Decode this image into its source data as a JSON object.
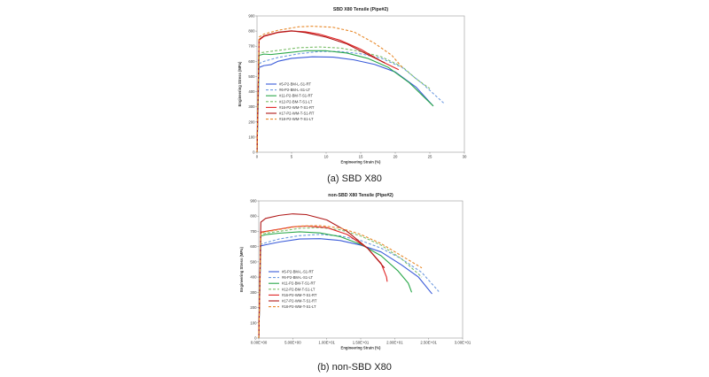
{
  "chart_data": [
    {
      "type": "line",
      "title": "SBD X80 Tensile (Pipe#2)",
      "xlabel": "Engineering Strain (%)",
      "ylabel": "Engineering Stress (MPa)",
      "xlim": [
        0,
        30
      ],
      "ylim": [
        0,
        900
      ],
      "x_ticks": [
        "0",
        "5",
        "10",
        "15",
        "20",
        "25",
        "30"
      ],
      "y_ticks": [
        "0",
        "100",
        "200",
        "300",
        "400",
        "500",
        "600",
        "700",
        "800",
        "900"
      ],
      "grid": false,
      "legend_position": "inside-lower-left",
      "caption": "(a) SBD X80",
      "series": [
        {
          "name": "#5-P2-BM-L-S1-RT",
          "color": "#3a5bd9",
          "dash": "solid",
          "points": [
            [
              0,
              0
            ],
            [
              0.3,
              560
            ],
            [
              1,
              572
            ],
            [
              2,
              578
            ],
            [
              3,
              600
            ],
            [
              5,
              620
            ],
            [
              8,
              630
            ],
            [
              11,
              628
            ],
            [
              14,
              610
            ],
            [
              17,
              580
            ],
            [
              20,
              530
            ],
            [
              23,
              430
            ],
            [
              25.5,
              305
            ]
          ]
        },
        {
          "name": "#6-P2-BM-L-S1-LT",
          "color": "#6d9ae0",
          "dash": "dashed",
          "points": [
            [
              0,
              0
            ],
            [
              0.3,
              585
            ],
            [
              1,
              600
            ],
            [
              3,
              625
            ],
            [
              6,
              650
            ],
            [
              9,
              665
            ],
            [
              12,
              665
            ],
            [
              15,
              650
            ],
            [
              18,
              620
            ],
            [
              21,
              560
            ],
            [
              24,
              450
            ],
            [
              27,
              325
            ]
          ]
        },
        {
          "name": "#11-P2-BM-T-S1-RT",
          "color": "#2aa84a",
          "dash": "solid",
          "points": [
            [
              0,
              0
            ],
            [
              0.3,
              640
            ],
            [
              1,
              648
            ],
            [
              2,
              645
            ],
            [
              4,
              655
            ],
            [
              7,
              670
            ],
            [
              10,
              670
            ],
            [
              13,
              655
            ],
            [
              16,
              620
            ],
            [
              19,
              560
            ],
            [
              22,
              460
            ],
            [
              25.5,
              305
            ]
          ]
        },
        {
          "name": "#12-P2-BM-T-S1-LT",
          "color": "#7cbf6a",
          "dash": "dashed",
          "points": [
            [
              0,
              0
            ],
            [
              0.3,
              655
            ],
            [
              1,
              660
            ],
            [
              3,
              672
            ],
            [
              6,
              690
            ],
            [
              9,
              695
            ],
            [
              12,
              688
            ],
            [
              15,
              665
            ],
            [
              18,
              630
            ],
            [
              21,
              565
            ],
            [
              23,
              485
            ],
            [
              25,
              420
            ]
          ]
        },
        {
          "name": "#16-P2-WM-T-S1-RT",
          "color": "#e02424",
          "dash": "solid",
          "points": [
            [
              0,
              0
            ],
            [
              0.3,
              740
            ],
            [
              1,
              765
            ],
            [
              3,
              790
            ],
            [
              5,
              800
            ],
            [
              7,
              795
            ],
            [
              9,
              780
            ],
            [
              12,
              740
            ],
            [
              15,
              680
            ],
            [
              18,
              600
            ],
            [
              20.5,
              545
            ]
          ]
        },
        {
          "name": "#17-P2-WM-T-S1-RT",
          "color": "#b01818",
          "dash": "solid",
          "points": [
            [
              0,
              0
            ],
            [
              0.3,
              745
            ],
            [
              1,
              768
            ],
            [
              3,
              792
            ],
            [
              5,
              802
            ],
            [
              7,
              790
            ],
            [
              10,
              760
            ],
            [
              13,
              715
            ],
            [
              16,
              645
            ],
            [
              18.5,
              590
            ]
          ]
        },
        {
          "name": "#18-P2-WM-T-S1-LT",
          "color": "#e8892a",
          "dash": "dashed",
          "points": [
            [
              0,
              0
            ],
            [
              0.3,
              760
            ],
            [
              1,
              780
            ],
            [
              3,
              805
            ],
            [
              6,
              828
            ],
            [
              8,
              832
            ],
            [
              11,
              825
            ],
            [
              14,
              795
            ],
            [
              17,
              720
            ],
            [
              19.5,
              640
            ],
            [
              21,
              560
            ]
          ]
        }
      ]
    },
    {
      "type": "line",
      "title": "non-SBD X80 Tensile (Pipe#2)",
      "xlabel": "Engineering Strain (%)",
      "ylabel": "Engineering Stress (MPa)",
      "xlim": [
        0,
        30
      ],
      "ylim": [
        0,
        900
      ],
      "x_ticks": [
        "0.00E+00",
        "5.00E+00",
        "1.00E+01",
        "1.50E+01",
        "2.00E+01",
        "2.50E+01",
        "3.00E+01"
      ],
      "y_ticks": [
        "0",
        "100",
        "200",
        "300",
        "400",
        "500",
        "600",
        "700",
        "800",
        "900"
      ],
      "grid": false,
      "legend_position": "inside-lower-left",
      "caption": "(b) non-SBD X80",
      "series": [
        {
          "name": "#5-P2-BM-L-S1-RT",
          "color": "#3a5bd9",
          "dash": "solid",
          "points": [
            [
              0,
              0
            ],
            [
              0.3,
              605
            ],
            [
              1,
              612
            ],
            [
              3,
              630
            ],
            [
              6,
              650
            ],
            [
              9,
              652
            ],
            [
              12,
              640
            ],
            [
              15,
              610
            ],
            [
              18,
              565
            ],
            [
              21,
              480
            ],
            [
              23.5,
              400
            ],
            [
              25.5,
              290
            ]
          ]
        },
        {
          "name": "#6-P2-BM-L-S1-LT",
          "color": "#6d9ae0",
          "dash": "dashed",
          "points": [
            [
              0,
              0
            ],
            [
              0.3,
              615
            ],
            [
              1,
              625
            ],
            [
              3,
              650
            ],
            [
              6,
              672
            ],
            [
              9,
              680
            ],
            [
              12,
              670
            ],
            [
              15,
              640
            ],
            [
              18,
              590
            ],
            [
              21,
              520
            ],
            [
              24,
              430
            ],
            [
              26.5,
              305
            ]
          ]
        },
        {
          "name": "#11-P2-BM-T-S1-RT",
          "color": "#2aa84a",
          "dash": "solid",
          "points": [
            [
              0,
              0
            ],
            [
              0.3,
              670
            ],
            [
              1,
              678
            ],
            [
              3,
              688
            ],
            [
              6,
              697
            ],
            [
              9,
              690
            ],
            [
              12,
              665
            ],
            [
              15,
              615
            ],
            [
              18,
              540
            ],
            [
              20.5,
              440
            ],
            [
              22,
              360
            ],
            [
              22.5,
              300
            ]
          ]
        },
        {
          "name": "#12-P2-BM-T-S1-LT",
          "color": "#7cbf6a",
          "dash": "dashed",
          "points": [
            [
              0,
              0
            ],
            [
              0.3,
              680
            ],
            [
              1,
              688
            ],
            [
              3,
              700
            ],
            [
              6,
              720
            ],
            [
              9,
              725
            ],
            [
              12,
              710
            ],
            [
              15,
              670
            ],
            [
              18,
              610
            ],
            [
              21,
              520
            ],
            [
              24,
              400
            ]
          ]
        },
        {
          "name": "#16-P2-WM-T-S1-RT",
          "color": "#e02424",
          "dash": "solid",
          "points": [
            [
              0,
              0
            ],
            [
              0.3,
              695
            ],
            [
              1,
              700
            ],
            [
              3,
              715
            ],
            [
              5,
              730
            ],
            [
              7,
              735
            ],
            [
              10,
              725
            ],
            [
              13,
              680
            ],
            [
              16,
              590
            ],
            [
              18,
              490
            ],
            [
              18.8,
              400
            ],
            [
              18.9,
              370
            ]
          ]
        },
        {
          "name": "#17-P2-WM-T-S1-RT",
          "color": "#b01818",
          "dash": "solid",
          "points": [
            [
              0,
              0
            ],
            [
              0.3,
              760
            ],
            [
              1,
              785
            ],
            [
              3,
              805
            ],
            [
              5,
              815
            ],
            [
              7,
              810
            ],
            [
              10,
              775
            ],
            [
              13,
              700
            ],
            [
              16,
              590
            ],
            [
              18.5,
              460
            ]
          ]
        },
        {
          "name": "#18-P2-WM-T-S1-LT",
          "color": "#e8892a",
          "dash": "dashed",
          "points": [
            [
              0,
              0
            ],
            [
              0.3,
              690
            ],
            [
              1,
              697
            ],
            [
              3,
              712
            ],
            [
              6,
              735
            ],
            [
              9,
              738
            ],
            [
              12,
              722
            ],
            [
              15,
              680
            ],
            [
              18,
              620
            ],
            [
              21,
              540
            ],
            [
              24,
              460
            ]
          ]
        }
      ]
    }
  ]
}
